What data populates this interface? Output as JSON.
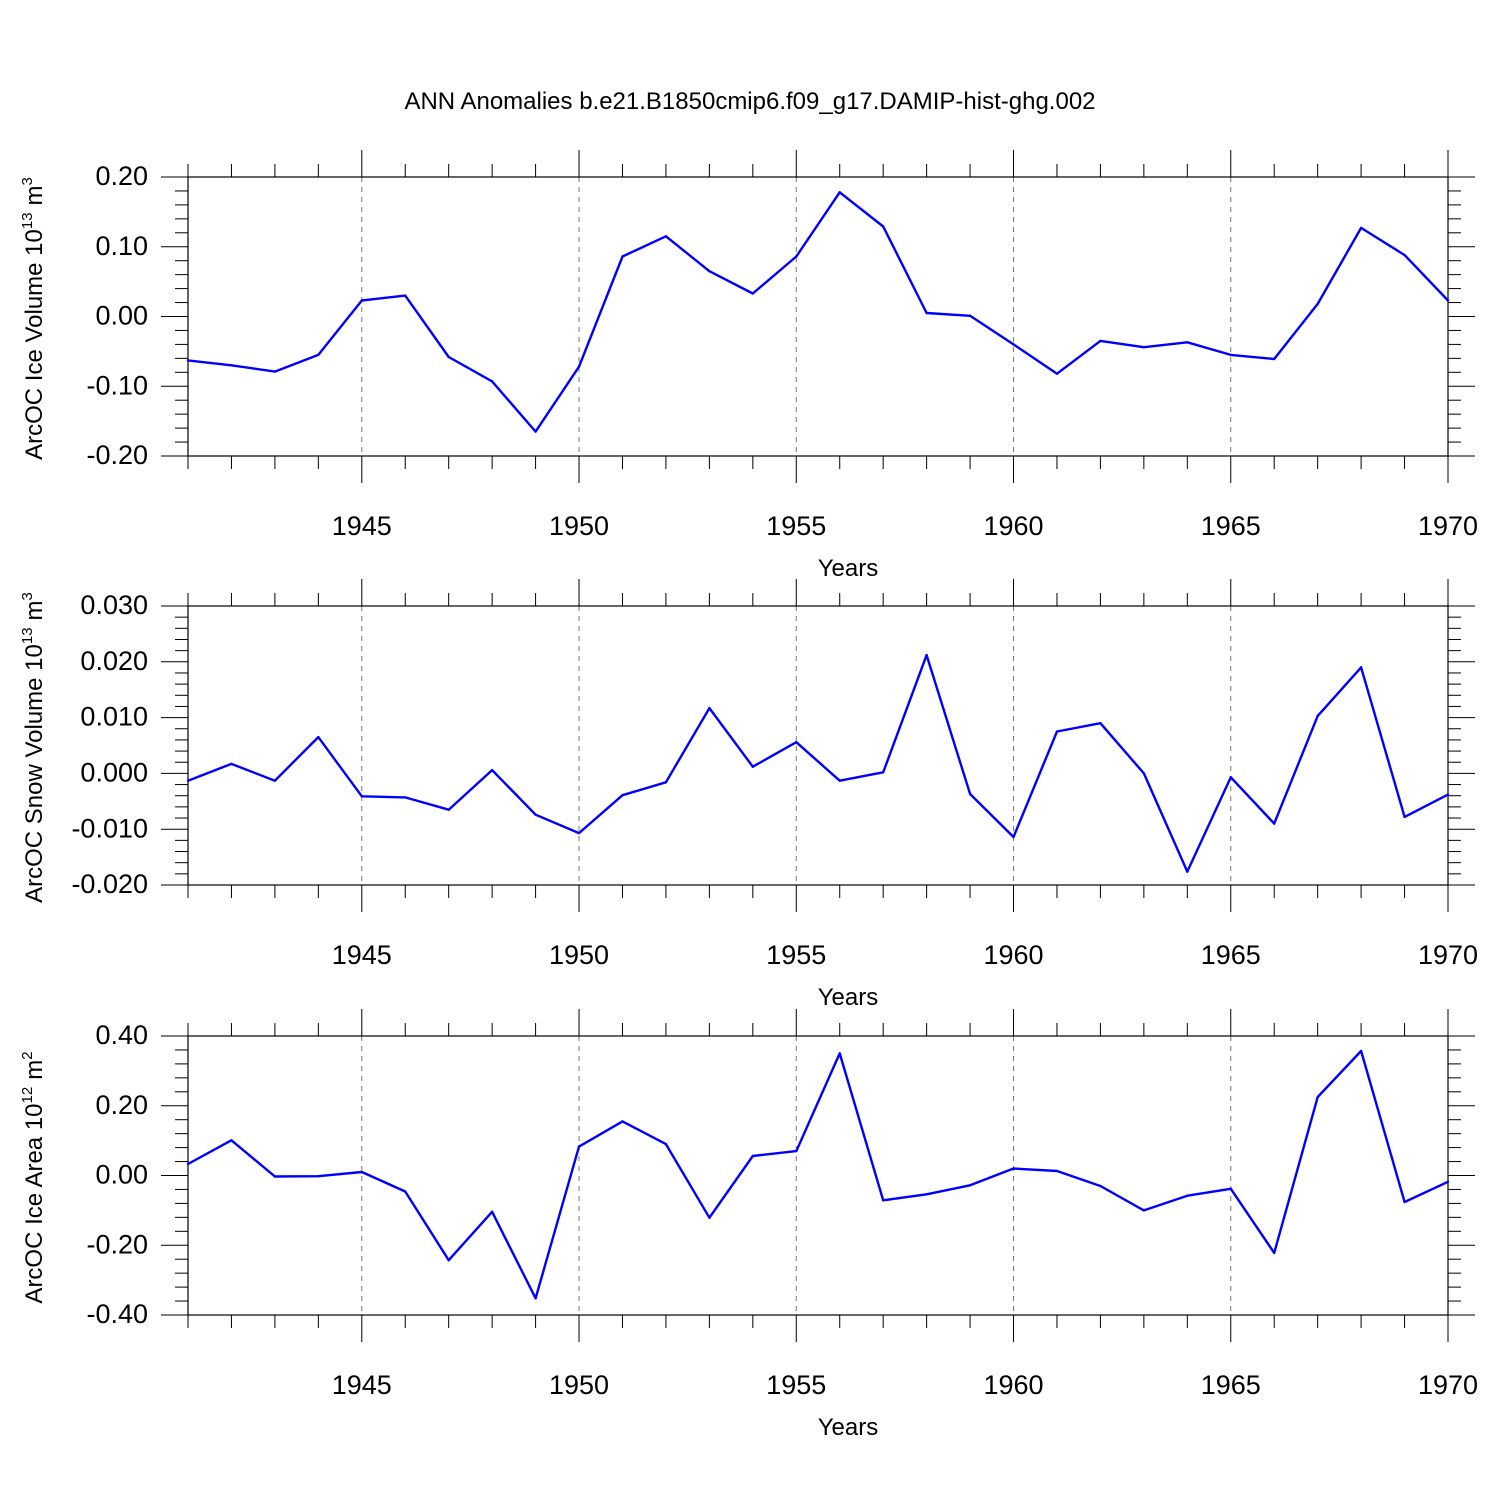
{
  "title": "ANN Anomalies b.e21.B1850cmip6.f09_g17.DAMIP-hist-ghg.002",
  "colors": {
    "line": "#0000ff",
    "frame": "#000000",
    "grid": "#777777"
  },
  "chart_data": [
    {
      "type": "line",
      "ylabel": "ArcOC Ice Volume 10",
      "ylabel_exp": "13",
      "ylabel_unit": "m",
      "ylabel_unit_exp": "3",
      "xlabel": "Years",
      "xlim": [
        1941,
        1970
      ],
      "ylim": [
        -0.2,
        0.2
      ],
      "yticks": [
        -0.2,
        -0.1,
        0.0,
        0.1,
        0.2
      ],
      "ytick_labels": [
        "-0.20",
        "-0.10",
        "0.00",
        "0.10",
        "0.20"
      ],
      "xticks": [
        1945,
        1950,
        1955,
        1960,
        1965,
        1970
      ],
      "xtick_labels": [
        "1945",
        "1950",
        "1955",
        "1960",
        "1965",
        "1970"
      ],
      "x": [
        1941,
        1942,
        1943,
        1944,
        1945,
        1946,
        1947,
        1948,
        1949,
        1950,
        1951,
        1952,
        1953,
        1954,
        1955,
        1956,
        1957,
        1958,
        1959,
        1960,
        1961,
        1962,
        1963,
        1964,
        1965,
        1966,
        1967,
        1968,
        1969,
        1970
      ],
      "values": [
        -0.063,
        -0.07,
        -0.079,
        -0.055,
        0.023,
        0.03,
        -0.058,
        -0.093,
        -0.165,
        -0.072,
        0.086,
        0.115,
        0.065,
        0.033,
        0.086,
        0.178,
        0.129,
        0.005,
        0.001,
        -0.04,
        -0.082,
        -0.035,
        -0.044,
        -0.037,
        -0.055,
        -0.061,
        0.018,
        0.127,
        0.088,
        0.023
      ]
    },
    {
      "type": "line",
      "ylabel": "ArcOC Snow Volume 10",
      "ylabel_exp": "13",
      "ylabel_unit": "m",
      "ylabel_unit_exp": "3",
      "xlabel": "Years",
      "xlim": [
        1941,
        1970
      ],
      "ylim": [
        -0.02,
        0.03
      ],
      "yticks": [
        -0.02,
        -0.01,
        0.0,
        0.01,
        0.02,
        0.03
      ],
      "ytick_labels": [
        "-0.020",
        "-0.010",
        "0.000",
        "0.010",
        "0.020",
        "0.030"
      ],
      "xticks": [
        1945,
        1950,
        1955,
        1960,
        1965,
        1970
      ],
      "xtick_labels": [
        "1945",
        "1950",
        "1955",
        "1960",
        "1965",
        "1970"
      ],
      "x": [
        1941,
        1942,
        1943,
        1944,
        1945,
        1946,
        1947,
        1948,
        1949,
        1950,
        1951,
        1952,
        1953,
        1954,
        1955,
        1956,
        1957,
        1958,
        1959,
        1960,
        1961,
        1962,
        1963,
        1964,
        1965,
        1966,
        1967,
        1968,
        1969,
        1970
      ],
      "values": [
        -0.0013,
        0.0017,
        -0.0013,
        0.0065,
        -0.0041,
        -0.0043,
        -0.0065,
        0.0006,
        -0.0074,
        -0.0107,
        -0.0039,
        -0.0016,
        0.0117,
        0.0012,
        0.0056,
        -0.0013,
        0.0002,
        0.0212,
        -0.0037,
        -0.0114,
        0.0075,
        0.009,
        0.0,
        -0.0176,
        -0.0007,
        -0.009,
        0.0103,
        0.019,
        -0.0078,
        -0.0038
      ]
    },
    {
      "type": "line",
      "ylabel": "ArcOC Ice Area 10",
      "ylabel_exp": "12",
      "ylabel_unit": "m",
      "ylabel_unit_exp": "2",
      "xlabel": "Years",
      "xlim": [
        1941,
        1970
      ],
      "ylim": [
        -0.4,
        0.4
      ],
      "yticks": [
        -0.4,
        -0.2,
        0.0,
        0.2,
        0.4
      ],
      "ytick_labels": [
        "-0.40",
        "-0.20",
        "0.00",
        "0.20",
        "0.40"
      ],
      "xticks": [
        1945,
        1950,
        1955,
        1960,
        1965,
        1970
      ],
      "xtick_labels": [
        "1945",
        "1950",
        "1955",
        "1960",
        "1965",
        "1970"
      ],
      "x": [
        1941,
        1942,
        1943,
        1944,
        1945,
        1946,
        1947,
        1948,
        1949,
        1950,
        1951,
        1952,
        1953,
        1954,
        1955,
        1956,
        1957,
        1958,
        1959,
        1960,
        1961,
        1962,
        1963,
        1964,
        1965,
        1966,
        1967,
        1968,
        1969,
        1970
      ],
      "values": [
        0.033,
        0.101,
        -0.003,
        -0.002,
        0.01,
        -0.046,
        -0.243,
        -0.104,
        -0.352,
        0.083,
        0.155,
        0.09,
        -0.121,
        0.056,
        0.07,
        0.35,
        -0.071,
        -0.054,
        -0.028,
        0.02,
        0.013,
        -0.03,
        -0.1,
        -0.058,
        -0.038,
        -0.222,
        0.225,
        0.357,
        -0.076,
        -0.018
      ]
    }
  ]
}
